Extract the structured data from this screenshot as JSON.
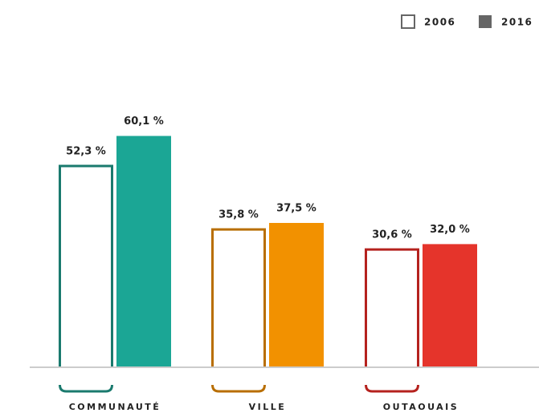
{
  "chart_data": {
    "type": "bar",
    "categories": [
      "COMMUNAUTÉ",
      "VILLE",
      "OUTAOUAIS"
    ],
    "series": [
      {
        "name": "2006",
        "color": "#666666",
        "outline": true,
        "colors": [
          "#1a7a6e",
          "#b86e00",
          "#b5221e"
        ],
        "values": [
          52.3,
          35.8,
          30.6
        ],
        "value_labels": [
          "52,3 %",
          "35,8 %",
          "30,6 %"
        ]
      },
      {
        "name": "2016",
        "color": "#666666",
        "outline": false,
        "colors": [
          "#1ba695",
          "#f29100",
          "#e5342b"
        ],
        "values": [
          60.1,
          37.5,
          32.0
        ],
        "value_labels": [
          "60,1 %",
          "37,5 %",
          "32,0 %"
        ]
      }
    ],
    "legend": "top-right"
  }
}
